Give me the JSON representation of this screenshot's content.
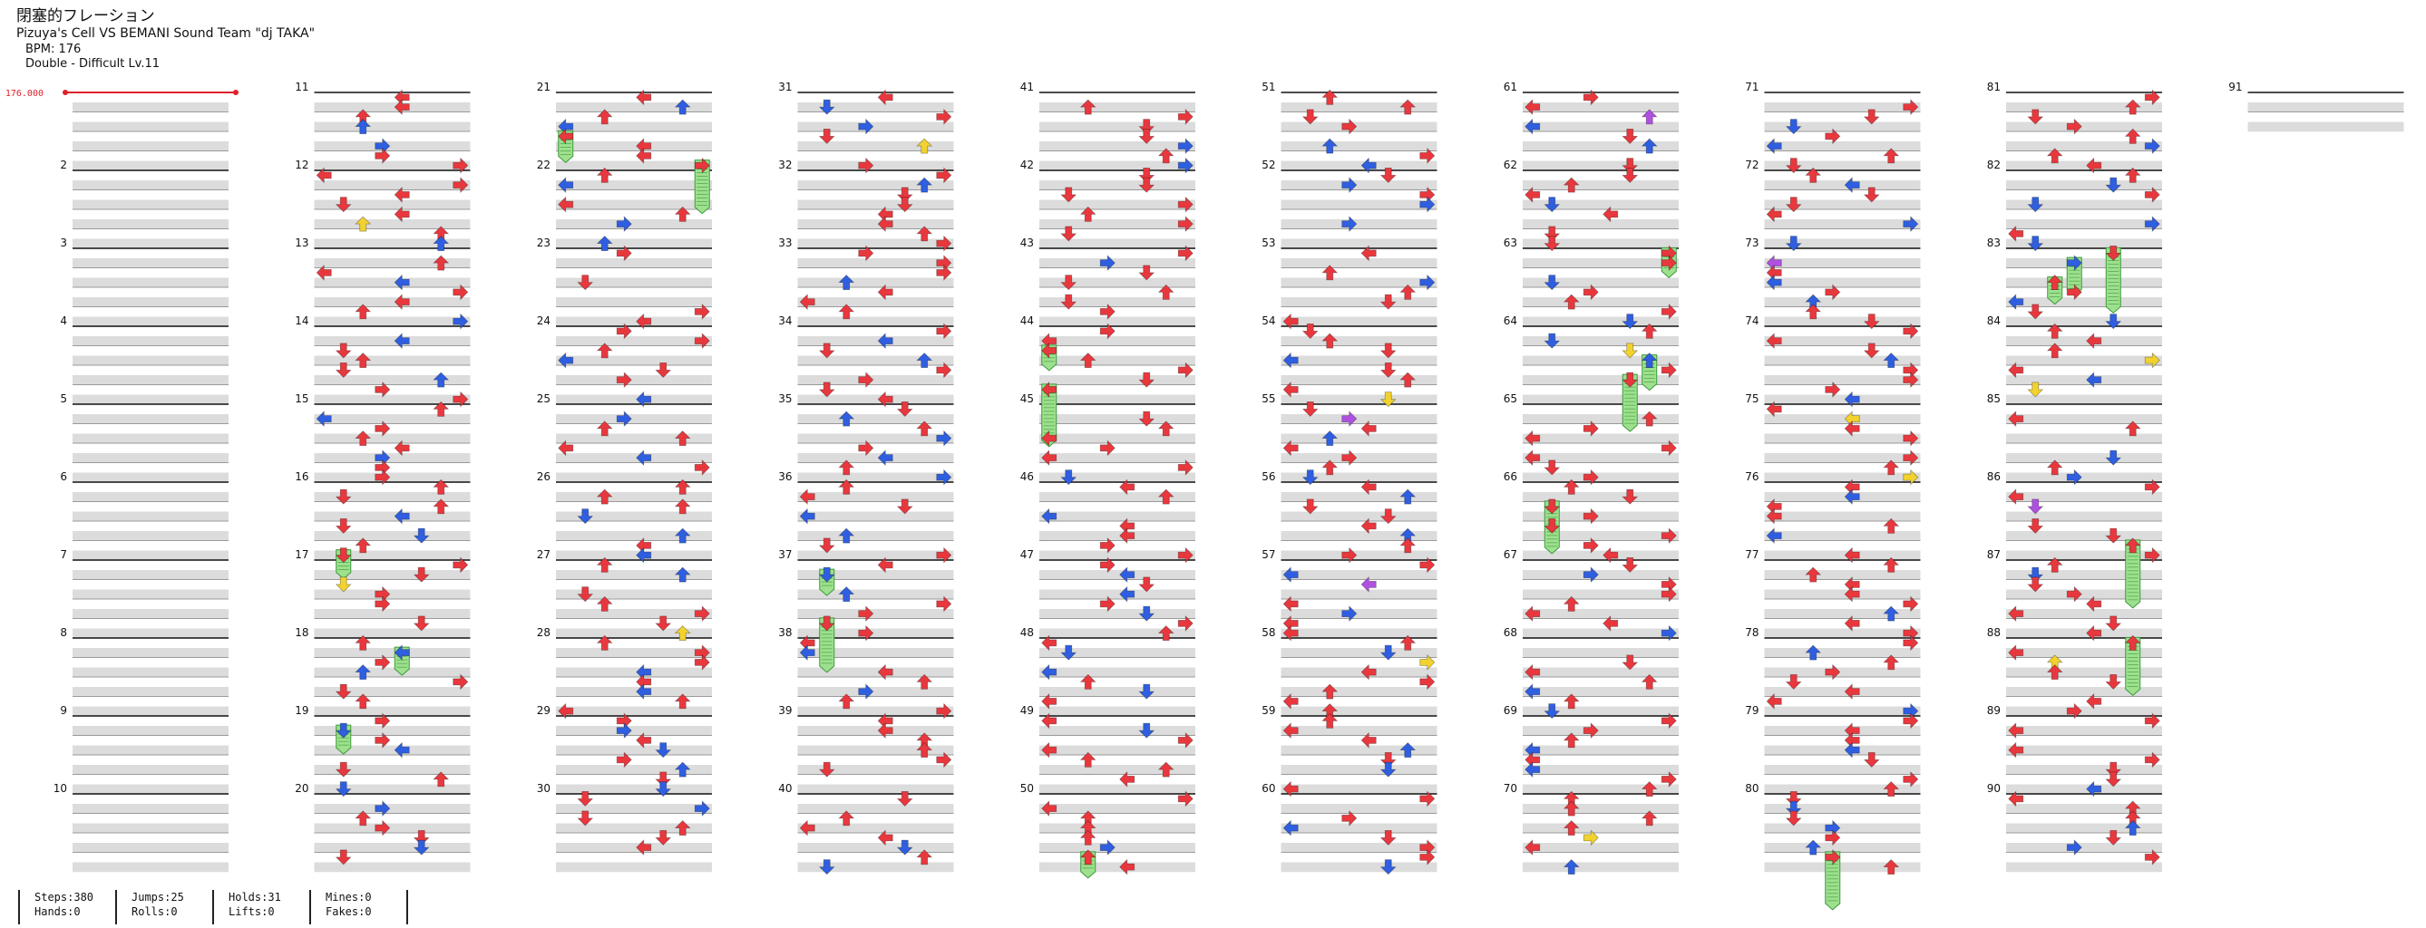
{
  "header": {
    "title": "閉塞的フレーション",
    "artist": "Pizuya's Cell VS BEMANI Sound Team \"dj TAKA\"",
    "bpm": "BPM: 176",
    "difficulty": "Double - Difficult  Lv.11"
  },
  "bpm_marker": {
    "label": "176.000",
    "color": "#e0202a"
  },
  "colors": {
    "red_arrow": "#e8383e",
    "blue_arrow": "#2f5fe0",
    "yellow_arrow": "#f2d22e",
    "purple_arrow": "#b050e0",
    "hold_fill": "#9ee08e",
    "hold_stroke": "#3a9a3a",
    "band_fill": "#dcdcdc"
  },
  "stats": [
    {
      "line1": "Steps:380",
      "line2": "Hands:0"
    },
    {
      "line1": "Jumps:25",
      "line2": "Rolls:0"
    },
    {
      "line1": "Holds:31",
      "line2": "Lifts:0"
    },
    {
      "line1": "Mines:0",
      "line2": "Fakes:0"
    }
  ],
  "measures": {
    "first": 1,
    "last": 91,
    "columns": 10,
    "per_column": 10,
    "labels_shown": [
      "2",
      "3",
      "4",
      "5",
      "6",
      "7",
      "8",
      "9",
      "10",
      "11",
      "12",
      "13",
      "14",
      "15",
      "16",
      "17",
      "18",
      "19",
      "20",
      "21",
      "22",
      "23",
      "24",
      "25",
      "26",
      "27",
      "28",
      "29",
      "30",
      "31",
      "32",
      "33",
      "34",
      "35",
      "36",
      "37",
      "38",
      "39",
      "40",
      "41",
      "42",
      "43",
      "44",
      "45",
      "46",
      "47",
      "48",
      "49",
      "50",
      "51",
      "52",
      "53",
      "54",
      "55",
      "56",
      "57",
      "58",
      "59",
      "60",
      "61",
      "62",
      "63",
      "64",
      "65",
      "66",
      "67",
      "68",
      "69",
      "70",
      "71",
      "72",
      "73",
      "74",
      "75",
      "76",
      "77",
      "78",
      "79",
      "80",
      "81",
      "82",
      "83",
      "84",
      "85",
      "86",
      "87",
      "88",
      "89",
      "90",
      "91"
    ]
  },
  "arrow_icons": {
    "left": "left-arrow-icon",
    "right": "right-arrow-icon",
    "up": "up-arrow-icon",
    "down": "down-arrow-icon"
  }
}
